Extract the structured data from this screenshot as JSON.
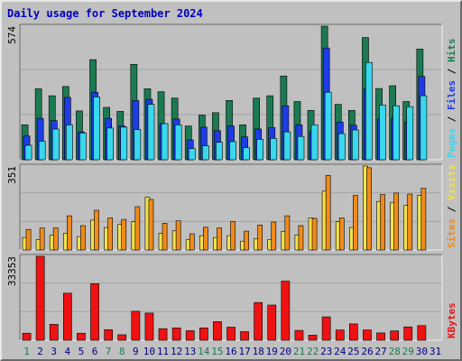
{
  "title": "Daily usage for September 2024",
  "colors": {
    "hits": "#1b7a52",
    "files": "#1e3ce6",
    "pages": "#38d8ee",
    "visits": "#f2e24a",
    "sites": "#f08a1c",
    "kbytes": "#ef1212",
    "title": "#0000c0",
    "weekend_day": "#1b7a52",
    "weekday": "#000080"
  },
  "chart_data": [
    {
      "type": "bar",
      "panel": "top",
      "ymax_label": "574",
      "ylim": [
        0,
        574
      ],
      "categories": [
        "1",
        "2",
        "3",
        "4",
        "5",
        "6",
        "7",
        "8",
        "9",
        "10",
        "11",
        "12",
        "13",
        "14",
        "15",
        "16",
        "17",
        "18",
        "19",
        "20",
        "21",
        "22",
        "23",
        "24",
        "25",
        "26",
        "27",
        "28",
        "29",
        "30",
        "31"
      ],
      "series": [
        {
          "name": "Hits",
          "values": [
            150,
            305,
            275,
            315,
            210,
            430,
            225,
            208,
            410,
            305,
            292,
            265,
            145,
            192,
            202,
            255,
            150,
            265,
            275,
            360,
            250,
            212,
            574,
            238,
            212,
            525,
            306,
            318,
            250,
            476,
            0
          ]
        },
        {
          "name": "Files",
          "values": [
            102,
            178,
            168,
            268,
            120,
            290,
            178,
            145,
            255,
            260,
            155,
            175,
            85,
            140,
            125,
            145,
            98,
            132,
            138,
            232,
            150,
            120,
            480,
            162,
            148,
            305,
            175,
            178,
            162,
            358,
            0
          ]
        },
        {
          "name": "Pages",
          "values": [
            62,
            80,
            132,
            150,
            115,
            270,
            136,
            140,
            130,
            238,
            155,
            150,
            48,
            60,
            75,
            78,
            52,
            88,
            92,
            120,
            100,
            150,
            290,
            112,
            128,
            418,
            235,
            232,
            228,
            275,
            0
          ]
        }
      ],
      "legend": [
        "Pages",
        "Files",
        "Hits"
      ]
    },
    {
      "type": "bar",
      "panel": "middle",
      "ymax_label": "351",
      "ylim": [
        0,
        351
      ],
      "categories": [
        "1",
        "2",
        "3",
        "4",
        "5",
        "6",
        "7",
        "8",
        "9",
        "10",
        "11",
        "12",
        "13",
        "14",
        "15",
        "16",
        "17",
        "18",
        "19",
        "20",
        "21",
        "22",
        "23",
        "24",
        "25",
        "26",
        "27",
        "28",
        "29",
        "30",
        "31"
      ],
      "series": [
        {
          "name": "Visits",
          "values": [
            52,
            44,
            62,
            70,
            56,
            125,
            94,
            107,
            118,
            220,
            70,
            80,
            43,
            60,
            52,
            60,
            37,
            48,
            44,
            78,
            63,
            134,
            246,
            118,
            94,
            351,
            203,
            198,
            186,
            229,
            0
          ]
        },
        {
          "name": "Sites",
          "values": [
            86,
            92,
            92,
            143,
            102,
            166,
            134,
            128,
            181,
            211,
            112,
            122,
            68,
            95,
            92,
            119,
            79,
            104,
            117,
            143,
            102,
            132,
            312,
            134,
            228,
            344,
            232,
            238,
            234,
            258,
            0
          ]
        }
      ],
      "legend": [
        "Sites",
        "Visits"
      ]
    },
    {
      "type": "bar",
      "panel": "bottom",
      "ymax_label": "33353",
      "ylim": [
        0,
        33353
      ],
      "categories": [
        "1",
        "2",
        "3",
        "4",
        "5",
        "6",
        "7",
        "8",
        "9",
        "10",
        "11",
        "12",
        "13",
        "14",
        "15",
        "16",
        "17",
        "18",
        "19",
        "20",
        "21",
        "22",
        "23",
        "24",
        "25",
        "26",
        "27",
        "28",
        "29",
        "30",
        "31"
      ],
      "series": [
        {
          "name": "KBytes",
          "values": [
            2800,
            33353,
            6300,
            18700,
            2800,
            22500,
            4200,
            2200,
            11500,
            10800,
            4600,
            4900,
            3800,
            4900,
            7400,
            5200,
            3400,
            15000,
            14000,
            23500,
            3900,
            2000,
            9300,
            4100,
            6500,
            4100,
            2900,
            3700,
            5300,
            5800,
            0
          ]
        }
      ],
      "legend": [
        "KBytes"
      ]
    }
  ],
  "x_axis_labels": [
    "1",
    "2",
    "3",
    "4",
    "5",
    "6",
    "7",
    "8",
    "9",
    "10",
    "11",
    "12",
    "13",
    "14",
    "15",
    "16",
    "17",
    "18",
    "19",
    "20",
    "21",
    "22",
    "23",
    "24",
    "25",
    "26",
    "27",
    "28",
    "29",
    "30",
    "31"
  ],
  "weekend_days": [
    "1",
    "7",
    "8",
    "14",
    "15",
    "21",
    "22",
    "28",
    "29"
  ],
  "legend_separator": " / "
}
